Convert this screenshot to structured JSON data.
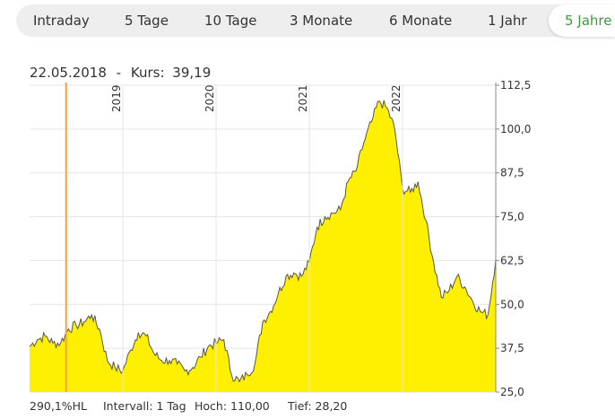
{
  "tabs": [
    {
      "label": "Intraday",
      "active": false
    },
    {
      "label": "5 Tage",
      "active": false
    },
    {
      "label": "10 Tage",
      "active": false
    },
    {
      "label": "3 Monate",
      "active": false
    },
    {
      "label": "6 Monate",
      "active": false
    },
    {
      "label": "1 Jahr",
      "active": false
    },
    {
      "label": "5 Jahre",
      "active": true
    }
  ],
  "info": {
    "date": "22.05.2018",
    "separator": "-",
    "kurs_label": "Kurs:",
    "kurs_value": "39,19"
  },
  "footer": {
    "hl": "290,1%HL",
    "interval": "Intervall: 1 Tag",
    "hoch": "Hoch:  110,00",
    "tief": "Tief:  28,20"
  },
  "colors": {
    "area_fill": "#ffef00",
    "line": "#555555",
    "grid": "#e6e6e6",
    "cursor": "#f5a43c",
    "active_tab": "#3c9a3f"
  },
  "chart_data": {
    "type": "area",
    "ylim": [
      25.0,
      112.5
    ],
    "yticks": [
      "25,0",
      "37,5",
      "50,0",
      "62,5",
      "75,0",
      "87,5",
      "100,0",
      "112,5"
    ],
    "year_labels": [
      "2019",
      "2020",
      "2021",
      "2022"
    ],
    "grid": true,
    "y_axis_position": "right",
    "cursor_date": "22.05.2018",
    "x": [
      "2018-01",
      "2018-02",
      "2018-03",
      "2018-04",
      "2018-05",
      "2018-06",
      "2018-07",
      "2018-08",
      "2018-09",
      "2018-10",
      "2018-11",
      "2018-12",
      "2019-01",
      "2019-02",
      "2019-03",
      "2019-04",
      "2019-05",
      "2019-06",
      "2019-07",
      "2019-08",
      "2019-09",
      "2019-10",
      "2019-11",
      "2019-12",
      "2020-01",
      "2020-02",
      "2020-03",
      "2020-04",
      "2020-05",
      "2020-06",
      "2020-07",
      "2020-08",
      "2020-09",
      "2020-10",
      "2020-11",
      "2020-12",
      "2021-01",
      "2021-02",
      "2021-03",
      "2021-04",
      "2021-05",
      "2021-06",
      "2021-07",
      "2021-08",
      "2021-09",
      "2021-10",
      "2021-11",
      "2021-12",
      "2022-01",
      "2022-02",
      "2022-03",
      "2022-04",
      "2022-05",
      "2022-06",
      "2022-07",
      "2022-08",
      "2022-09",
      "2022-10",
      "2022-11",
      "2022-12",
      "2023-01"
    ],
    "values": [
      38,
      40,
      41,
      39,
      39,
      43,
      44,
      45,
      47,
      43,
      34,
      32,
      31,
      37,
      42,
      41,
      36,
      34,
      34,
      33,
      31,
      32,
      35,
      38,
      39,
      40,
      30,
      28,
      30,
      33,
      45,
      48,
      53,
      58,
      59,
      58,
      62,
      72,
      75,
      76,
      77,
      85,
      88,
      96,
      102,
      108,
      106,
      100,
      83,
      82,
      85,
      74,
      62,
      52,
      54,
      58,
      55,
      51,
      48,
      47,
      63
    ]
  }
}
